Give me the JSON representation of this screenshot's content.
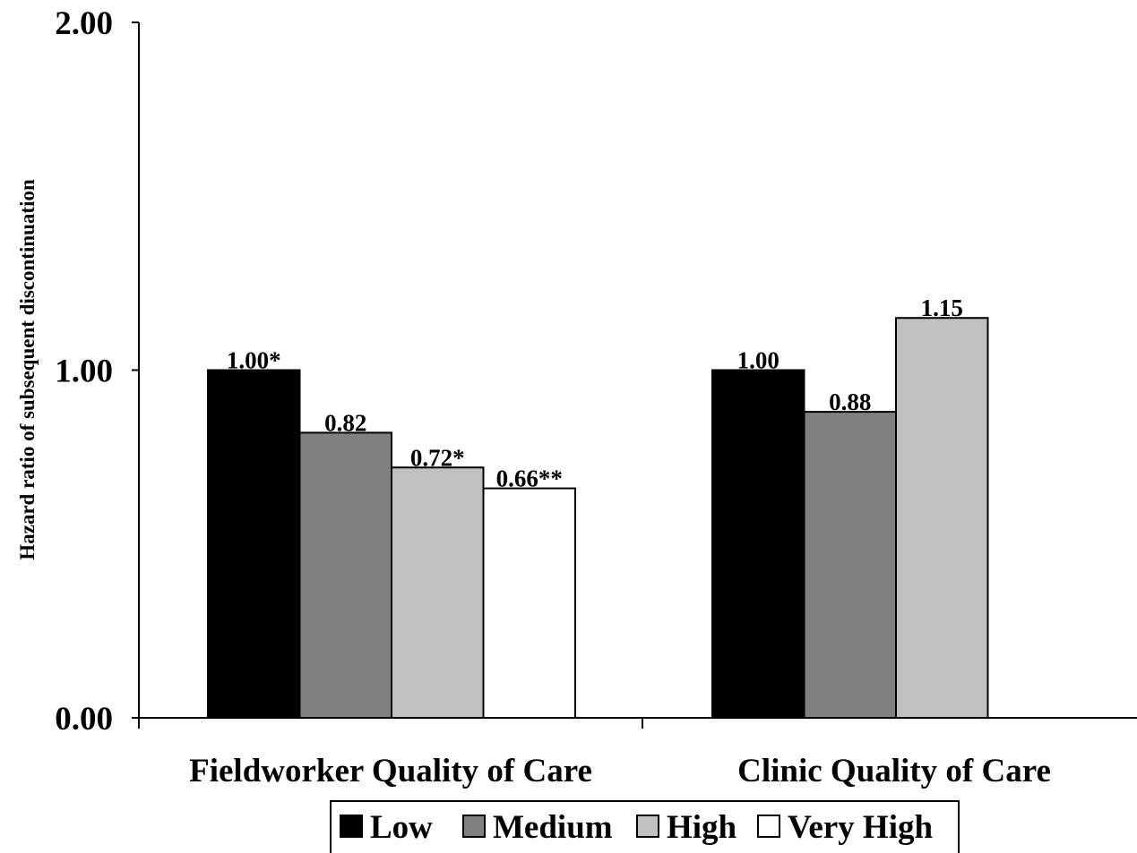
{
  "chart_data": {
    "type": "bar",
    "title": "",
    "xlabel": "",
    "ylabel": "Hazard ratio of subsequent discontinuation",
    "ylim": [
      0,
      2
    ],
    "y_ticks": [
      {
        "value": 0,
        "label": "0.00"
      },
      {
        "value": 1,
        "label": "1.00"
      },
      {
        "value": 2,
        "label": "2.00"
      }
    ],
    "grid": false,
    "legend_position": "bottom",
    "categories": [
      "Fieldworker Quality of Care",
      "Clinic Quality of Care"
    ],
    "series": [
      {
        "name": "Low",
        "color": "#000000",
        "values": [
          1.0,
          1.0
        ],
        "labels": [
          "1.00*",
          "1.00"
        ]
      },
      {
        "name": "Medium",
        "color": "#808080",
        "values": [
          0.82,
          0.88
        ],
        "labels": [
          "0.82",
          "0.88"
        ]
      },
      {
        "name": "High",
        "color": "#c0c0c0",
        "values": [
          0.72,
          1.15
        ],
        "labels": [
          "0.72*",
          "1.15"
        ]
      },
      {
        "name": "Very High",
        "color": "#ffffff",
        "values": [
          0.66,
          null
        ],
        "labels": [
          "0.66**",
          ""
        ]
      }
    ]
  }
}
